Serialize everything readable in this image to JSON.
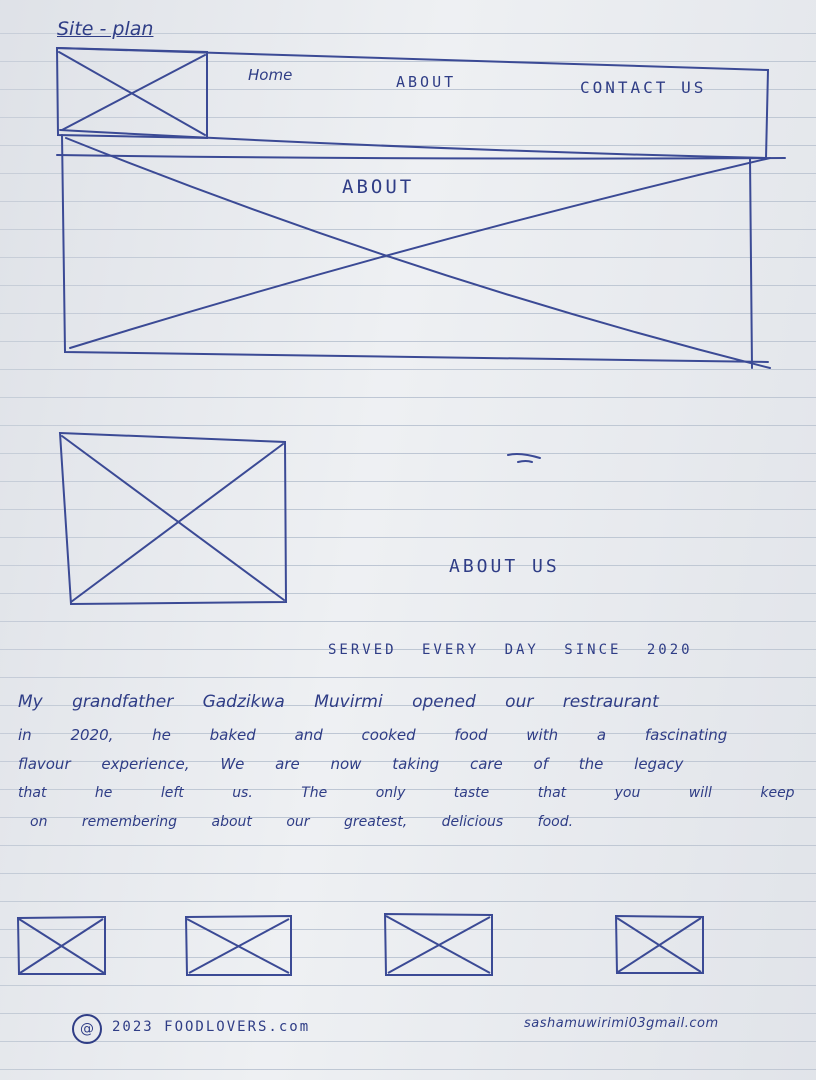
{
  "title": "Site - plan",
  "nav": {
    "home": "Home",
    "about": "ABOUT",
    "contact": "CONTACT US"
  },
  "hero": {
    "label": "ABOUT"
  },
  "section": {
    "heading": "ABOUT US",
    "tagline": "SERVED EVERY DAY SINCE 2020"
  },
  "story": {
    "line1": "My grandfather Gadzikwa Muvirmi opened our restraurant",
    "line2": "in 2020, he baked and cooked food with a fascinating",
    "line3": "flavour experience, We are now taking care of the legacy",
    "line4": "that he left us. The only taste that you will keep",
    "line5": "on remembering about our greatest, delicious food."
  },
  "footer": {
    "copyright": "2023 FOODLOVERS.com",
    "copyright_symbol": "@",
    "email": "sashamuwirimi03gmail.com"
  }
}
